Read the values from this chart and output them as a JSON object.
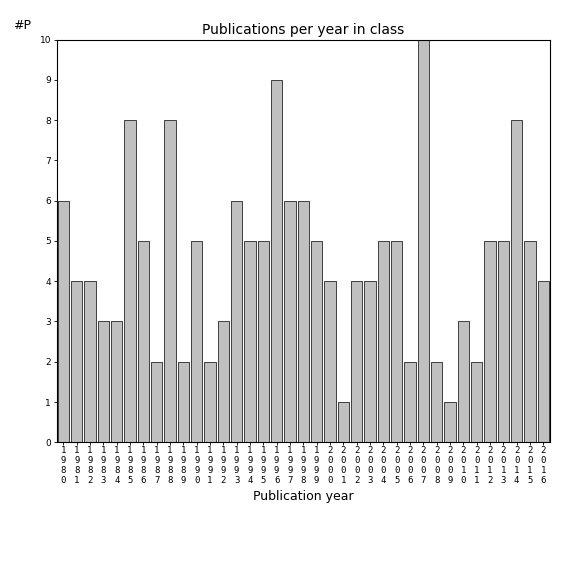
{
  "title": "Publications per year in class",
  "xlabel": "Publication year",
  "ylabel": "#P",
  "years": [
    "1980",
    "1981",
    "1982",
    "1983",
    "1984",
    "1985",
    "1986",
    "1987",
    "1988",
    "1989",
    "1990",
    "1991",
    "1992",
    "1993",
    "1994",
    "1995",
    "1996",
    "1997",
    "1998",
    "1999",
    "2000",
    "2001",
    "2002",
    "2003",
    "2004",
    "2005",
    "2006",
    "2007",
    "2008",
    "2009",
    "2010",
    "2011",
    "2012",
    "2013",
    "2014",
    "2015",
    "2016"
  ],
  "values": [
    6,
    4,
    4,
    3,
    3,
    8,
    5,
    2,
    8,
    2,
    5,
    2,
    3,
    6,
    5,
    5,
    9,
    6,
    6,
    5,
    4,
    1,
    4,
    4,
    5,
    5,
    2,
    10,
    2,
    1,
    3,
    2,
    5,
    5,
    8,
    5,
    4
  ],
  "bar_color": "#c0c0c0",
  "bar_edge_color": "#000000",
  "bar_edge_width": 0.5,
  "ylim": [
    0,
    10
  ],
  "yticks": [
    0,
    1,
    2,
    3,
    4,
    5,
    6,
    7,
    8,
    9,
    10
  ],
  "bg_color": "#ffffff",
  "title_fontsize": 10,
  "label_fontsize": 9,
  "tick_fontsize": 6.5
}
